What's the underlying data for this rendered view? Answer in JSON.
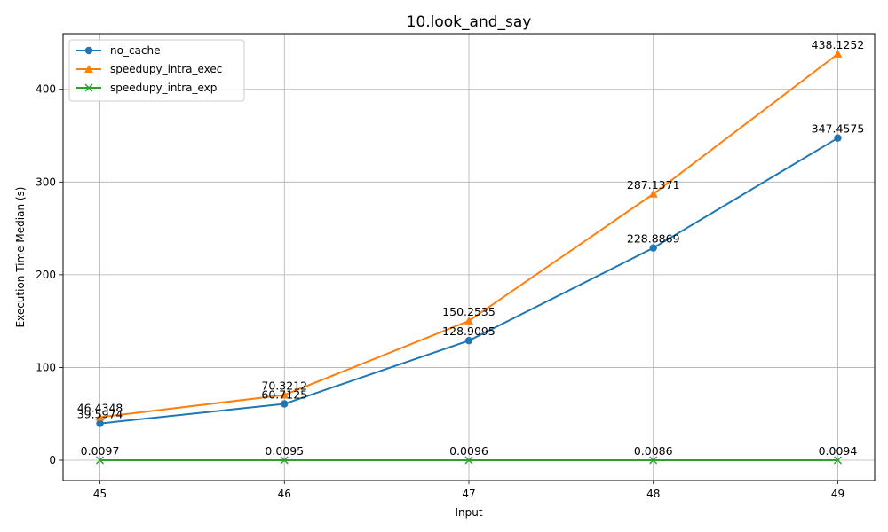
{
  "chart_data": {
    "type": "line",
    "title": "10.look_and_say",
    "xlabel": "Input",
    "ylabel": "Execution Time Median (s)",
    "x": [
      45,
      46,
      47,
      48,
      49
    ],
    "xlim": [
      44.8,
      49.2
    ],
    "ylim": [
      -22,
      460
    ],
    "yticks": [
      0,
      100,
      200,
      300,
      400
    ],
    "grid": true,
    "legend_position": "top-left",
    "series": [
      {
        "name": "no_cache",
        "marker": "circle",
        "color": "#1f77b4",
        "values": [
          39.5974,
          60.7125,
          128.9095,
          228.8869,
          347.4575
        ],
        "labels": [
          "39.5974",
          "60.7125",
          "128.9095",
          "228.8869",
          "347.4575"
        ]
      },
      {
        "name": "speedupy_intra_exec",
        "marker": "triangle",
        "color": "#ff7f0e",
        "values": [
          46.4348,
          70.3212,
          150.2535,
          287.1371,
          438.1252
        ],
        "labels": [
          "46.4348",
          "70.3212",
          "150.2535",
          "287.1371",
          "438.1252"
        ]
      },
      {
        "name": "speedupy_intra_exp",
        "marker": "x",
        "color": "#2ca02c",
        "values": [
          0.0097,
          0.0095,
          0.0096,
          0.0086,
          0.0094
        ],
        "labels": [
          "0.0097",
          "0.0095",
          "0.0096",
          "0.0086",
          "0.0094"
        ]
      }
    ]
  }
}
